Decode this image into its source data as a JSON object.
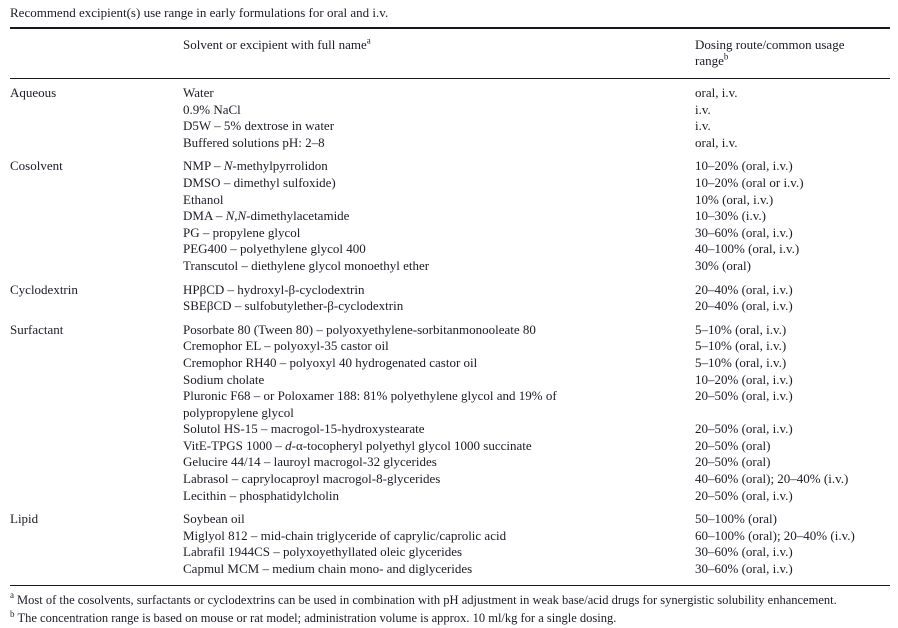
{
  "title": "Recommend excipient(s) use range in early formulations for oral and i.v.",
  "table": {
    "col_headers": [
      "",
      "Solvent or excipient with full name^{a}",
      "Dosing route/common usage range^{b}"
    ],
    "sections": [
      {
        "category": "Aqueous",
        "rows": [
          {
            "name": "Water",
            "dose": "oral, i.v."
          },
          {
            "name": "0.9% NaCl",
            "dose": "i.v."
          },
          {
            "name": "D5W – 5% dextrose in water",
            "dose": "i.v."
          },
          {
            "name": "Buffered solutions pH: 2–8",
            "dose": "oral, i.v."
          }
        ]
      },
      {
        "category": "Cosolvent",
        "rows": [
          {
            "name": "NMP – *N*-methylpyrrolidon",
            "dose": "10–20% (oral, i.v.)"
          },
          {
            "name": "DMSO – dimethyl sulfoxide)",
            "dose": "10–20% (oral or i.v.)"
          },
          {
            "name": "Ethanol",
            "dose": "10% (oral, i.v.)"
          },
          {
            "name": "DMA – *N,N*-dimethylacetamide",
            "dose": "10–30% (i.v.)"
          },
          {
            "name": "PG – propylene glycol",
            "dose": "30–60% (oral, i.v.)"
          },
          {
            "name": "PEG400 – polyethylene glycol 400",
            "dose": "40–100% (oral, i.v.)"
          },
          {
            "name": "Transcutol – diethylene glycol monoethyl ether",
            "dose": "30% (oral)"
          }
        ]
      },
      {
        "category": "Cyclodextrin",
        "rows": [
          {
            "name": "HPβCD – hydroxyl-β-cyclodextrin",
            "dose": "20–40% (oral, i.v.)"
          },
          {
            "name": "SBEβCD – sulfobutylether-β-cyclodextrin",
            "dose": "20–40% (oral, i.v.)"
          }
        ]
      },
      {
        "category": "Surfactant",
        "rows": [
          {
            "name": "Posorbate 80 (Tween 80) – polyoxyethylene-sorbitanmonooleate 80",
            "dose": "5–10% (oral, i.v.)"
          },
          {
            "name": "Cremophor EL – polyoxyl-35 castor oil",
            "dose": "5–10% (oral, i.v.)"
          },
          {
            "name": "Cremophor RH40 – polyoxyl 40 hydrogenated castor oil",
            "dose": "5–10% (oral, i.v.)"
          },
          {
            "name": "Sodium cholate",
            "dose": "10–20% (oral, i.v.)"
          },
          {
            "name": "Pluronic F68 – or Poloxamer 188: 81% polyethylene glycol and 19% of\npolypropylene glycol",
            "dose": "20–50% (oral, i.v.)"
          },
          {
            "name": "Solutol HS-15 – macrogol-15-hydroxystearate",
            "dose": "20–50% (oral, i.v.)"
          },
          {
            "name": "VitE-TPGS 1000 – *d*-α-tocopheryl polyethyl glycol 1000 succinate",
            "dose": "20–50% (oral)"
          },
          {
            "name": "Gelucire 44/14 – lauroyl macrogol-32 glycerides",
            "dose": "20–50% (oral)"
          },
          {
            "name": "Labrasol – caprylocaproyl macrogol-8-glycerides",
            "dose": "40–60% (oral); 20–40% (i.v.)"
          },
          {
            "name": "Lecithin – phosphatidylcholin",
            "dose": "20–50% (oral, i.v.)"
          }
        ]
      },
      {
        "category": "Lipid",
        "rows": [
          {
            "name": "Soybean oil",
            "dose": "50–100% (oral)"
          },
          {
            "name": "Miglyol 812 – mid-chain triglyceride of caprylic/caprolic acid",
            "dose": "60–100% (oral); 20–40% (i.v.)"
          },
          {
            "name": "Labrafil 1944CS – polyxoyethyllated oleic glycerides",
            "dose": "30–60% (oral, i.v.)"
          },
          {
            "name": "Capmul MCM – medium chain mono- and diglycerides",
            "dose": "30–60% (oral, i.v.)"
          }
        ]
      }
    ]
  },
  "footnotes": [
    {
      "marker": "a",
      "text": "Most of the cosolvents, surfactants or cyclodextrins can be used in combination with pH adjustment in weak base/acid drugs for synergistic solubility enhancement."
    },
    {
      "marker": "b",
      "text": "The concentration range is based on mouse or rat model; administration volume is approx. 10 ml/kg for a single dosing."
    }
  ]
}
